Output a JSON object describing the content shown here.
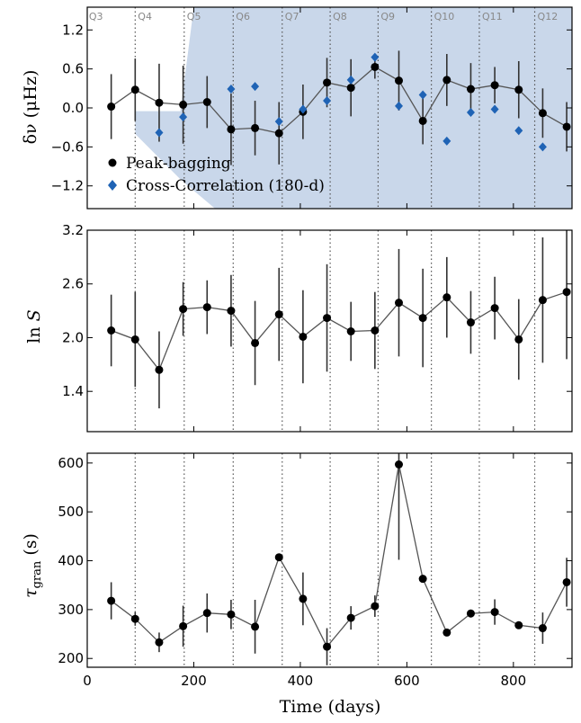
{
  "chart_data": {
    "x": {
      "label": "Time (days)",
      "range": [
        0,
        910
      ],
      "ticks": [
        0,
        200,
        400,
        600,
        800
      ]
    },
    "quarters": {
      "labels": [
        "Q3",
        "Q4",
        "Q5",
        "Q6",
        "Q7",
        "Q8",
        "Q9",
        "Q10",
        "Q11",
        "Q12"
      ],
      "boundaries": [
        90,
        182,
        274,
        366,
        456,
        546,
        646,
        736,
        840
      ]
    },
    "panels": [
      {
        "type": "scatter",
        "ylabel_base": "δν (",
        "ylabel_unit": "μHz",
        "ylabel_close": ")",
        "ylim": [
          -1.55,
          1.55
        ],
        "yticks": [
          -1.2,
          -0.6,
          0.0,
          0.6,
          1.2
        ],
        "tick_labels": [
          "−1.2",
          "−0.6",
          "0.0",
          "0.6",
          "1.2"
        ],
        "band_color": "#c9d7ea",
        "band_upper": [
          [
            90,
            -0.05
          ],
          [
            175,
            -0.05
          ],
          [
            200,
            1.55
          ],
          [
            910,
            1.55
          ]
        ],
        "band_lower": [
          [
            90,
            -0.4
          ],
          [
            175,
            -1.1
          ],
          [
            240,
            -1.55
          ],
          [
            910,
            -1.55
          ]
        ],
        "series": [
          {
            "name": "Peak-bagging",
            "marker": "circle",
            "color": "#000000",
            "line": true,
            "x": [
              45,
              90,
              135,
              180,
              225,
              270,
              315,
              360,
              405,
              450,
              495,
              540,
              585,
              630,
              675,
              720,
              765,
              810,
              855,
              900
            ],
            "y": [
              0.02,
              0.28,
              0.08,
              0.05,
              0.09,
              -0.33,
              -0.31,
              -0.39,
              -0.06,
              0.39,
              0.31,
              0.63,
              0.42,
              -0.2,
              0.43,
              0.29,
              0.35,
              0.28,
              -0.08,
              -0.29
            ],
            "err": [
              0.5,
              0.48,
              0.6,
              0.6,
              0.4,
              0.55,
              0.42,
              0.48,
              0.42,
              0.38,
              0.44,
              0.18,
              0.46,
              0.36,
              0.4,
              0.4,
              0.28,
              0.44,
              0.38,
              0.38
            ]
          },
          {
            "name": "Cross-Correlation (180-d)",
            "marker": "diamond",
            "color": "#1f63b5",
            "line": false,
            "x": [
              135,
              180,
              270,
              315,
              360,
              405,
              450,
              495,
              540,
              585,
              630,
              675,
              720,
              765,
              810,
              855
            ],
            "y": [
              -0.38,
              -0.14,
              0.29,
              0.33,
              -0.21,
              -0.02,
              0.11,
              0.43,
              0.78,
              0.03,
              0.2,
              -0.51,
              -0.07,
              -0.02,
              -0.35,
              -0.6
            ]
          }
        ]
      },
      {
        "type": "line",
        "ylabel_base": "ln ",
        "ylabel_var": "S",
        "ylim": [
          0.95,
          3.2
        ],
        "yticks": [
          1.4,
          2.0,
          2.6,
          3.2
        ],
        "tick_labels": [
          "1.4",
          "2.0",
          "2.6",
          "3.2"
        ],
        "series": [
          {
            "name": "",
            "marker": "circle",
            "color": "#000000",
            "line": true,
            "x": [
              45,
              90,
              135,
              180,
              225,
              270,
              315,
              360,
              405,
              450,
              495,
              540,
              585,
              630,
              675,
              720,
              765,
              810,
              855,
              900
            ],
            "y": [
              2.08,
              1.98,
              1.64,
              2.32,
              2.34,
              2.3,
              1.94,
              2.26,
              2.01,
              2.22,
              2.07,
              2.08,
              2.39,
              2.22,
              2.45,
              2.17,
              2.33,
              1.98,
              2.42,
              2.51
            ],
            "err": [
              0.4,
              0.53,
              0.43,
              0.3,
              0.3,
              0.4,
              0.47,
              0.52,
              0.52,
              0.6,
              0.33,
              0.43,
              0.6,
              0.55,
              0.45,
              0.35,
              0.35,
              0.45,
              0.7,
              0.75
            ]
          }
        ]
      },
      {
        "type": "line",
        "ylabel_base": "τ",
        "ylabel_sub": "gran",
        "ylabel_unit": " (s)",
        "ylim": [
          182,
          620
        ],
        "yticks": [
          200,
          300,
          400,
          500,
          600
        ],
        "tick_labels": [
          "200",
          "300",
          "400",
          "500",
          "600"
        ],
        "series": [
          {
            "name": "",
            "marker": "circle",
            "color": "#000000",
            "line": true,
            "x": [
              45,
              90,
              135,
              180,
              225,
              270,
              315,
              360,
              405,
              450,
              495,
              540,
              585,
              630,
              675,
              720,
              765,
              810,
              855,
              900
            ],
            "y": [
              318,
              281,
              233,
              266,
              293,
              290,
              265,
              407,
              322,
              224,
              283,
              307,
              597,
              363,
              253,
              292,
              295,
              268,
              262,
              356
            ],
            "err": [
              38,
              14,
              20,
              42,
              40,
              30,
              55,
              0,
              54,
              38,
              24,
              22,
              195,
              0,
              4,
              8,
              26,
              6,
              32,
              50
            ]
          }
        ]
      }
    ]
  }
}
